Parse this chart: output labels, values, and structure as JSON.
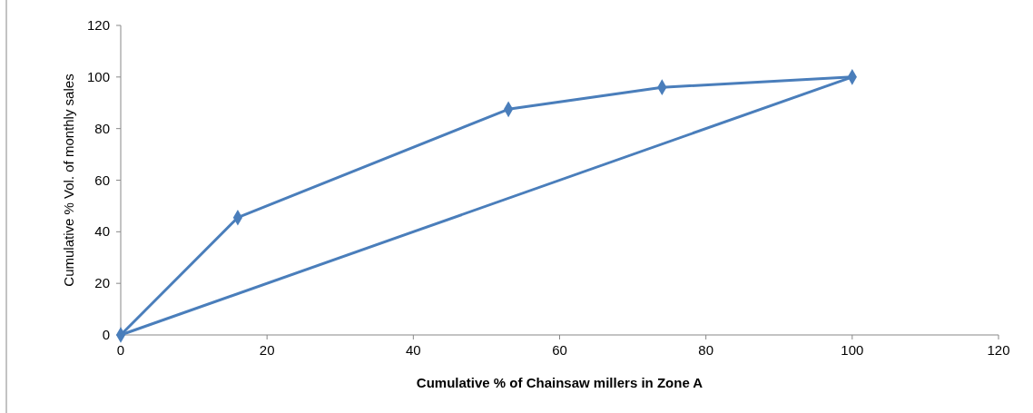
{
  "chart_data": {
    "type": "line",
    "xlabel": "Cumulative % of Chainsaw millers in Zone A",
    "ylabel": "Cumulative % Vol. of monthly sales",
    "xlim": [
      0,
      120
    ],
    "xticks": [
      0,
      20,
      40,
      60,
      80,
      100,
      120
    ],
    "ylim": [
      0,
      120
    ],
    "yticks": [
      0,
      20,
      40,
      60,
      80,
      100,
      120
    ],
    "grid": false,
    "series": [
      {
        "color": "#4a7ebb",
        "x": [
          0,
          16,
          53,
          74,
          100
        ],
        "values": [
          0,
          45.5,
          87.5,
          96,
          100
        ],
        "marker": "diamond"
      },
      {
        "color": "#4a7ebb",
        "x": [
          0,
          100
        ],
        "values": [
          0,
          100
        ],
        "marker": "none"
      }
    ]
  }
}
